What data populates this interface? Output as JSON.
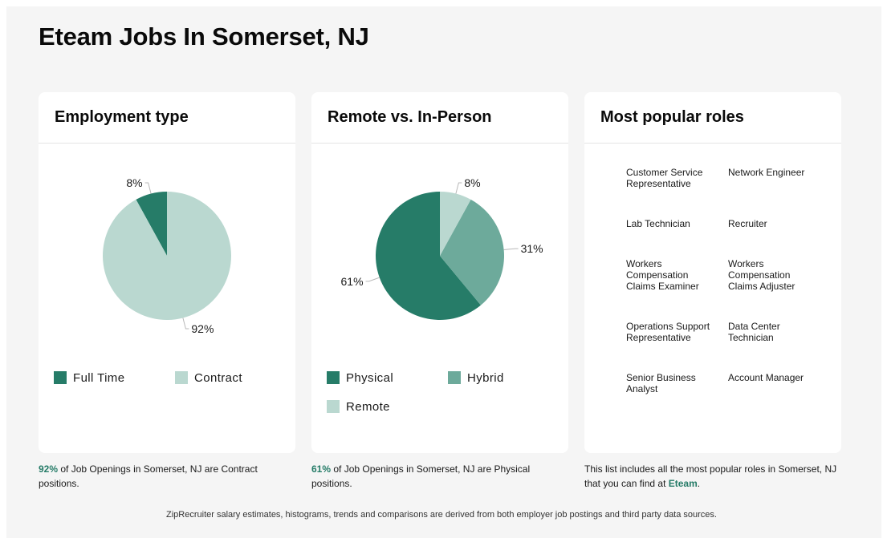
{
  "page": {
    "title": "Eteam Jobs In Somerset, NJ"
  },
  "chart_data": [
    {
      "type": "pie",
      "title": "Employment type",
      "slices": [
        {
          "label": "Full Time",
          "value": 8,
          "display": "8%",
          "color": "#267c68"
        },
        {
          "label": "Contract",
          "value": 92,
          "display": "92%",
          "color": "#bad8d0"
        }
      ],
      "legend_placement": "bottom"
    },
    {
      "type": "pie",
      "title": "Remote vs. In-Person",
      "slices": [
        {
          "label": "Physical",
          "value": 61,
          "display": "61%",
          "color": "#267c68"
        },
        {
          "label": "Hybrid",
          "value": 31,
          "display": "31%",
          "color": "#6daa9b"
        },
        {
          "label": "Remote",
          "value": 8,
          "display": "8%",
          "color": "#bad8d0"
        }
      ],
      "legend_placement": "bottom"
    }
  ],
  "employment": {
    "caption_pct": "92%",
    "caption_text": " of Job Openings in Somerset, NJ are Contract positions."
  },
  "remote": {
    "caption_pct": "61%",
    "caption_text": " of Job Openings in Somerset, NJ are Physical positions."
  },
  "roles": {
    "title": "Most popular roles",
    "items": [
      "Customer Service Representative",
      "Network Engineer",
      "Lab Technician",
      "Recruiter",
      "Workers Compensation Claims Examiner",
      "Workers Compensation Claims Adjuster",
      "Operations Support Representative",
      "Data Center Technician",
      "Senior Business Analyst",
      "Account Manager"
    ],
    "caption_text": "This list includes all the most popular roles in Somerset, NJ that you can find at ",
    "caption_link": "Eteam",
    "caption_end": "."
  },
  "footnote": "ZipRecruiter salary estimates, histograms, trends and comparisons are derived from both employer job postings and third party data sources."
}
